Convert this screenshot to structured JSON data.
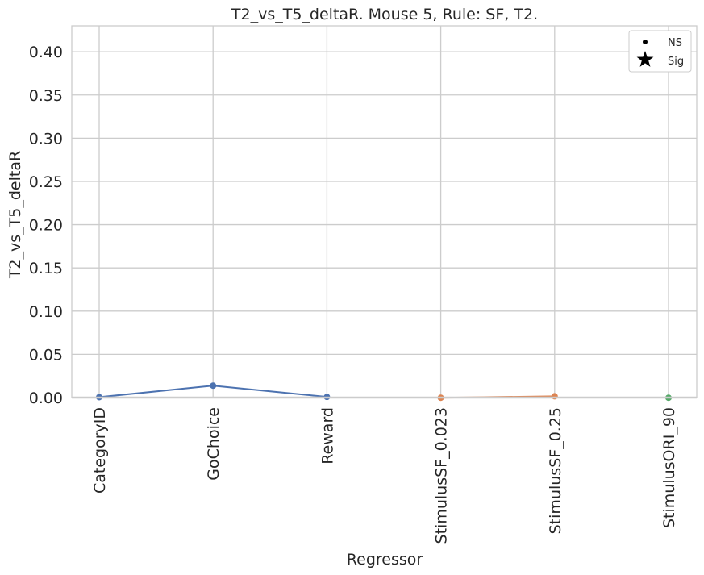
{
  "chart_data": {
    "type": "line",
    "title": "T2_vs_T5_deltaR. Mouse 5, Rule: SF, T2.",
    "xlabel": "Regressor",
    "ylabel": "T2_vs_T5_deltaR",
    "ylim": [
      0,
      0.43
    ],
    "yticks": [
      0.0,
      0.05,
      0.1,
      0.15,
      0.2,
      0.25,
      0.3,
      0.35,
      0.4
    ],
    "ytick_labels": [
      "0.00",
      "0.05",
      "0.10",
      "0.15",
      "0.20",
      "0.25",
      "0.30",
      "0.35",
      "0.40"
    ],
    "categories": [
      "CategoryID",
      "GoChoice",
      "Reward",
      "StimulusSF_0.023",
      "StimulusSF_0.25",
      "StimulusORI_90"
    ],
    "grid": true,
    "legend_position": "top-right",
    "legend": [
      {
        "label": "NS",
        "marker": "dot"
      },
      {
        "label": "Sig",
        "marker": "star"
      }
    ],
    "series": [
      {
        "color": "#4c72b0",
        "points": [
          {
            "x": "CategoryID",
            "y": 0.0005
          },
          {
            "x": "GoChoice",
            "y": 0.0138
          },
          {
            "x": "Reward",
            "y": 0.0008
          }
        ]
      },
      {
        "color": "#dd8452",
        "points": [
          {
            "x": "StimulusSF_0.023",
            "y": -0.0002
          },
          {
            "x": "StimulusSF_0.25",
            "y": 0.0015
          }
        ]
      },
      {
        "color": "#55a868",
        "points": [
          {
            "x": "StimulusORI_90",
            "y": -0.0002
          }
        ]
      }
    ]
  }
}
